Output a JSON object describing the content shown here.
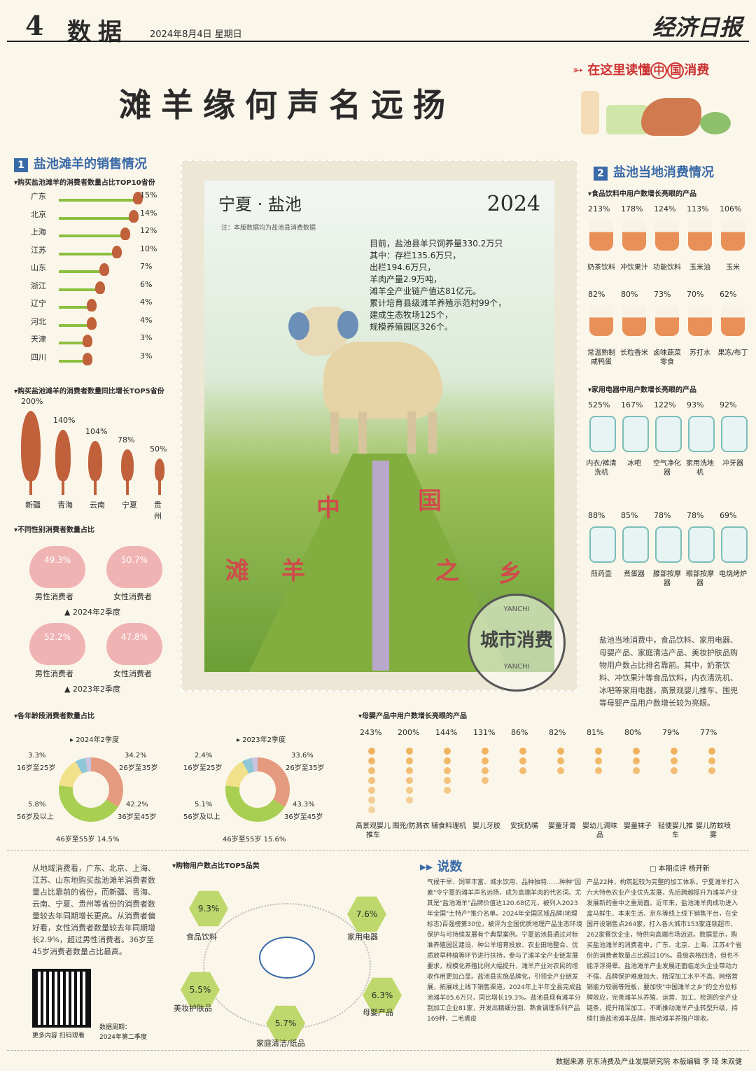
{
  "header": {
    "page_no": "4",
    "section": "数据",
    "date": "2024年8月4日 星期日",
    "brand": "经济日报"
  },
  "title": "滩羊缘何声名远扬",
  "tagline": {
    "pre": "在这里读懂",
    "c1": "中",
    "c2": "国",
    "post": "消费"
  },
  "s1": {
    "num": "1",
    "title": "盐池滩羊的销售情况",
    "top10_title": "购买盐池滩羊的消费者数量占比TOP10省份",
    "top10": [
      {
        "p": "广东",
        "v": "15%",
        "f": 0.15
      },
      {
        "p": "北京",
        "v": "14%",
        "f": 0.14
      },
      {
        "p": "上海",
        "v": "12%",
        "f": 0.12
      },
      {
        "p": "江苏",
        "v": "10%",
        "f": 0.1
      },
      {
        "p": "山东",
        "v": "7%",
        "f": 0.07
      },
      {
        "p": "浙江",
        "v": "6%",
        "f": 0.06
      },
      {
        "p": "辽宁",
        "v": "4%",
        "f": 0.04
      },
      {
        "p": "河北",
        "v": "4%",
        "f": 0.04
      },
      {
        "p": "天津",
        "v": "3%",
        "f": 0.03
      },
      {
        "p": "四川",
        "v": "3%",
        "f": 0.03
      }
    ],
    "growth_title": "购买盐池滩羊的消费者数量同比增长TOP5省份",
    "growth": [
      {
        "p": "新疆",
        "v": "200%",
        "f": 2.0
      },
      {
        "p": "青海",
        "v": "140%",
        "f": 1.4
      },
      {
        "p": "云南",
        "v": "104%",
        "f": 1.04
      },
      {
        "p": "宁夏",
        "v": "78%",
        "f": 0.78
      },
      {
        "p": "贵州",
        "v": "50%",
        "f": 0.5
      }
    ],
    "gender_title": "不同性别消费者数量占比",
    "g2024": {
      "male": "49.3%",
      "female": "50.7%",
      "ml": "男性消费者",
      "fl": "女性消费者",
      "cap": "▲ 2024年2季度"
    },
    "g2023": {
      "male": "52.2%",
      "female": "47.8%",
      "ml": "男性消费者",
      "fl": "女性消费者",
      "cap": "▲ 2023年2季度"
    },
    "age_title": "各年龄段消费者数量占比",
    "a2024": {
      "cap": "2024年2季度",
      "a": "3.3%",
      "al": "16岁至25岁",
      "b": "34.2%",
      "bl": "26岁至35岁",
      "c": "42.2%",
      "cl": "36岁至45岁",
      "d": "5.8%",
      "dl": "56岁及以上",
      "e": "46岁至55岁  14.5%"
    },
    "a2023": {
      "cap": "2023年2季度",
      "a": "2.4%",
      "al": "16岁至25岁",
      "b": "33.6%",
      "bl": "26岁至35岁",
      "c": "43.3%",
      "cl": "36岁至45岁",
      "d": "5.1%",
      "dl": "56岁及以上",
      "e": "46岁至55岁  15.6%"
    }
  },
  "stamp": {
    "place": "宁夏 · 盐池",
    "year": "2024",
    "note": "注：本版数据均为盐池县消费数据",
    "lines": [
      "目前，盐池县羊只饲养量330.2万只",
      "其中：存栏135.6万只，",
      "出栏194.6万只，",
      "羊肉产量2.9万吨，",
      "滩羊全产业链产值达81亿元。",
      "累计培育县级滩羊养殖示范村99个，",
      "建成生态牧场125个，",
      "规模养殖园区326个。"
    ],
    "sign": [
      "中",
      "国",
      "滩",
      "羊",
      "之",
      "乡"
    ],
    "seal": "城市消费",
    "seal_sub": "YANCHI"
  },
  "s2": {
    "num": "2",
    "title": "盐池当地消费情况",
    "food_title": "食品饮料中用户数增长亮眼的产品",
    "food": [
      {
        "v": "213%",
        "l": "奶茶饮料"
      },
      {
        "v": "178%",
        "l": "冲饮果汁"
      },
      {
        "v": "124%",
        "l": "功能饮料"
      },
      {
        "v": "113%",
        "l": "玉米油"
      },
      {
        "v": "106%",
        "l": "玉米"
      },
      {
        "v": "82%",
        "l": "常温熟制咸鸭蛋"
      },
      {
        "v": "80%",
        "l": "长粒香米"
      },
      {
        "v": "73%",
        "l": "卤味蔬菜零食"
      },
      {
        "v": "70%",
        "l": "苏打水"
      },
      {
        "v": "62%",
        "l": "果冻/布丁"
      }
    ],
    "appl_title": "家用电器中用户数增长亮眼的产品",
    "appl": [
      {
        "v": "525%",
        "l": "内衣/裤清洗机"
      },
      {
        "v": "167%",
        "l": "冰吧"
      },
      {
        "v": "122%",
        "l": "空气净化器"
      },
      {
        "v": "93%",
        "l": "家用洗地机"
      },
      {
        "v": "92%",
        "l": "冲牙器"
      },
      {
        "v": "88%",
        "l": "煎药壶"
      },
      {
        "v": "85%",
        "l": "煮蛋器"
      },
      {
        "v": "78%",
        "l": "腰部按摩器"
      },
      {
        "v": "78%",
        "l": "眼部按摩器"
      },
      {
        "v": "69%",
        "l": "电烧烤炉"
      }
    ],
    "para": "盐池当地消费中，食品饮料、家用电器、母婴产品、家庭清洁产品、美妆护肤品购物用户数占比排名靠前。其中，奶茶饮料、冲饮果汁等食品饮料，内衣清洗机、冰吧等家用电器，高景观婴儿推车、围兜等母婴产品用户数增长较为亮眼。"
  },
  "baby": {
    "title": "母婴产品中用户数增长亮眼的产品",
    "items": [
      {
        "v": "243%",
        "l": "高景观婴儿推车"
      },
      {
        "v": "200%",
        "l": "围兜/防溅衣"
      },
      {
        "v": "144%",
        "l": "辅食料理机"
      },
      {
        "v": "131%",
        "l": "婴儿牙胶"
      },
      {
        "v": "86%",
        "l": "安抚奶嘴"
      },
      {
        "v": "82%",
        "l": "婴童牙膏"
      },
      {
        "v": "81%",
        "l": "婴幼儿调味品"
      },
      {
        "v": "80%",
        "l": "婴童袜子"
      },
      {
        "v": "79%",
        "l": "轻便婴儿推车"
      },
      {
        "v": "77%",
        "l": "婴儿防蚊喷雾"
      }
    ]
  },
  "left_para": "从地域消费看，广东、北京、上海、江苏、山东地购买盐池滩羊消费者数量占比靠前的省份，而新疆、青海、云南、宁夏、贵州等省份的消费者数量较去年同期增长更高。从消费者偏好看，女性消费者数量较去年同期增长2.9%，超过男性消费者。36岁至45岁消费者数量占比最高。",
  "top5": {
    "title": "购物用户数占比TOP5品类",
    "items": [
      {
        "v": "9.3%",
        "l": "食品饮料"
      },
      {
        "v": "7.6%",
        "l": "家用电器"
      },
      {
        "v": "5.5%",
        "l": "美妆护肤品"
      },
      {
        "v": "6.3%",
        "l": "母婴产品"
      },
      {
        "v": "5.7%",
        "l": "家庭清洁/纸品"
      }
    ]
  },
  "qr": {
    "cap": "更多内容 扫码观看",
    "period_l": "数据周期：",
    "period": "2024年第二季度"
  },
  "shuo": {
    "title": "说数",
    "author": "□ 本期点评  杨开新",
    "c1": "气候干旱、饲草丰富、城水饮用、品种独特……种种\"因素\"令宁夏的滩羊声名远扬，成为高端羊肉的代名词。尤其是\"盐池滩羊\"品牌价值达120.68亿元，被列入2023年全国\"土特产\"推介名单。2024年全国区域品牌(地理标志)百强榜第30位，被评为全国优质地理产品生态环境保护与可持续发展有个典型案例。宁夏盐池县通过对标准养殖园区建设、种公羊培育投放、农业田地整合、优质放草种植等环节进行扶持，参与了滩羊全产业链发展要求，规模化养殖比例大幅提升，滩羊产业对农民的增收作用更加凸显。盐池县实施品牌化，引领全产业链发展，拓展线上线下销售渠道，2024年上半年全县完成盐池滩羊85.6万只，同比增长19.3%。盐池县现有滩羊分割加工企业81家，开发出精细分割、熟食调理系列产品169种，二毛裘皮",
    "c2": "产品22种，构筑起较为完整的加工体系。宁夏滩羊打入六大特色农业产业优先发展，先后跨越提升为滩羊产业发展新的重中之重局面。近年来，盐池滩羊肉成功进入盒马鲜生、本来生活、京东等线上线下销售平台，在全国开设销售点264家，打入各大城市153家连锁超市、262家餐饮企业，特供向高端市场迈进。数据显示，购买盐池滩羊的消费者中，广东、北京、上海、江苏4个省份的消费者数量占比超过10%。县级表格四清，但也不能浮浮得晕。盐池滩羊产业发展还面临龙头企业带动力不强、品牌保护难度加大、精深加工水平不高、网络营销能力较弱等短板，要加快\"中国滩羊之乡\"的全方位标牌效应，完善滩羊从养殖、运营、加工、检测的全产业链条，提升精深加工，不断推动滩羊产业转型升级，持续打造盐池滩羊品牌，推动滩羊养殖户增收。"
  },
  "footer": "数据来源  京东消费及产业发展研究院  本版编辑  李 琦  朱双健"
}
